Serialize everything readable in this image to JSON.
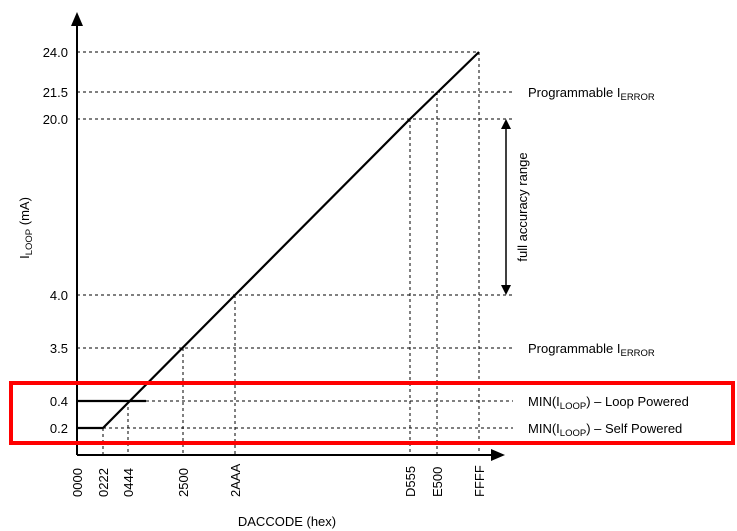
{
  "chart_data": {
    "type": "line",
    "title": "",
    "xlabel": "DACCODE (hex)",
    "ylabel": {
      "main": "I",
      "sub": "LOOP",
      "tail": " (mA)"
    },
    "x_ticks": [
      "0000",
      "0222",
      "0444",
      "2500",
      "2AAA",
      "D555",
      "E500",
      "FFFF"
    ],
    "y_ticks": [
      "0.2",
      "0.4",
      "3.5",
      "4.0",
      "20.0",
      "21.5",
      "24.0"
    ],
    "series": [
      {
        "x": [
          "0000",
          "0222",
          "2AAA",
          "D555",
          "FFFF"
        ],
        "y": [
          0.2,
          0.2,
          4.0,
          20.0,
          24.0
        ]
      },
      {
        "x": [
          "0000",
          "0444"
        ],
        "y": [
          0.4,
          0.4
        ]
      }
    ],
    "annotations": [
      {
        "y": 21.5,
        "text": "Programmable I",
        "sub": "ERROR",
        "tail": ""
      },
      {
        "y": 3.5,
        "text": "Programmable I",
        "sub": "ERROR",
        "tail": ""
      },
      {
        "y": 0.4,
        "text": "MIN(I",
        "sub": "LOOP",
        "tail": ") – Loop Powered"
      },
      {
        "y": 0.2,
        "text": "MIN(I",
        "sub": "LOOP",
        "tail": ") – Self Powered"
      }
    ],
    "range_annotation": {
      "label": "full accuracy range",
      "from": 4.0,
      "to": 20.0
    },
    "highlight_box": {
      "color": "#ff0000",
      "around": [
        "0.4",
        "0.2"
      ]
    },
    "grid": false,
    "legend": "none"
  }
}
